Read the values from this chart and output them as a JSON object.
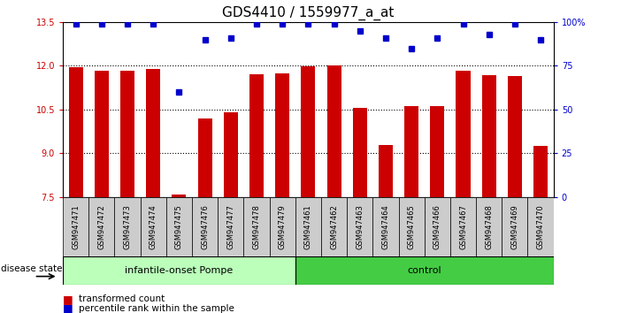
{
  "title": "GDS4410 / 1559977_a_at",
  "samples": [
    "GSM947471",
    "GSM947472",
    "GSM947473",
    "GSM947474",
    "GSM947475",
    "GSM947476",
    "GSM947477",
    "GSM947478",
    "GSM947479",
    "GSM947461",
    "GSM947462",
    "GSM947463",
    "GSM947464",
    "GSM947465",
    "GSM947466",
    "GSM947467",
    "GSM947468",
    "GSM947469",
    "GSM947470"
  ],
  "bar_values": [
    11.95,
    11.82,
    11.84,
    11.9,
    7.6,
    10.2,
    10.4,
    11.7,
    11.75,
    11.98,
    12.0,
    10.56,
    9.3,
    10.62,
    10.62,
    11.84,
    11.68,
    11.64,
    9.25
  ],
  "percentile_values": [
    99,
    99,
    99,
    99,
    60,
    90,
    91,
    99,
    99,
    99,
    99,
    95,
    91,
    85,
    91,
    99,
    93,
    99,
    90
  ],
  "bar_color": "#cc0000",
  "dot_color": "#0000cc",
  "group1_label": "infantile-onset Pompe",
  "group2_label": "control",
  "group1_count": 9,
  "group2_count": 10,
  "group1_color": "#bbffbb",
  "group2_color": "#44cc44",
  "disease_state_label": "disease state",
  "ylim_left": [
    7.5,
    13.5
  ],
  "ylim_right": [
    0,
    100
  ],
  "yticks_left": [
    7.5,
    9.0,
    10.5,
    12.0,
    13.5
  ],
  "yticks_right": [
    0,
    25,
    50,
    75,
    100
  ],
  "ytick_right_labels": [
    "0",
    "25",
    "50",
    "75",
    "100%"
  ],
  "dotted_lines": [
    9.0,
    10.5,
    12.0
  ],
  "legend_bar_label": "transformed count",
  "legend_dot_label": "percentile rank within the sample",
  "bar_width": 0.55,
  "title_fontsize": 11,
  "tick_fontsize": 7,
  "label_fontsize": 8,
  "tick_strip_color": "#cccccc"
}
